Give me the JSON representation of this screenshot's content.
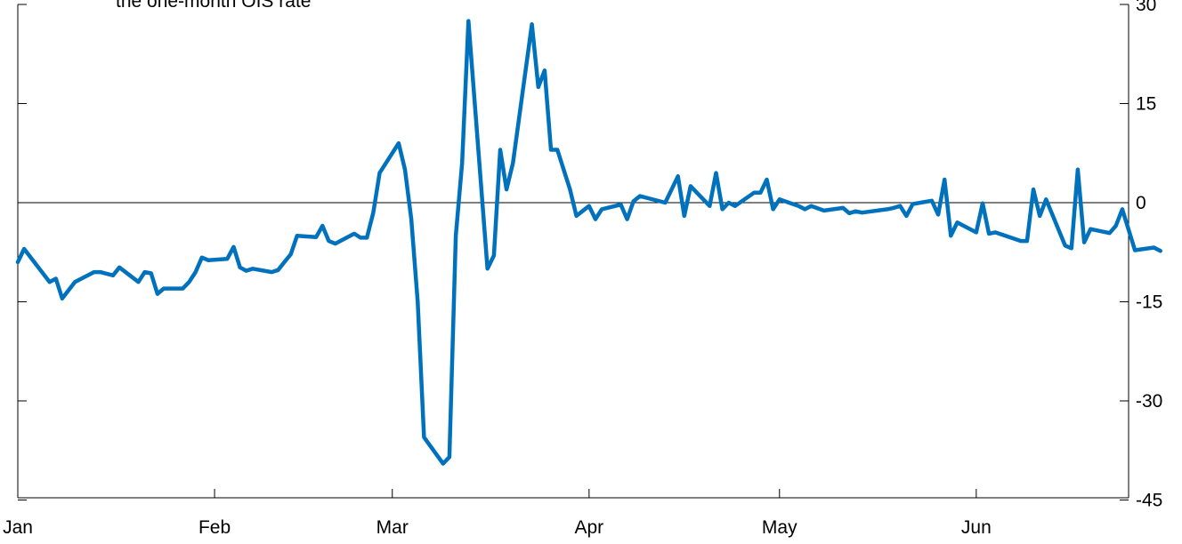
{
  "chart_data": {
    "type": "line",
    "subtitle_fragment": "the one-month OIS rate",
    "x_tick_labels": [
      "Jan",
      "Feb",
      "Mar",
      "Apr",
      "May",
      "Jun"
    ],
    "y_ticks": [
      30,
      15,
      0,
      -15,
      -30,
      -45
    ],
    "ylim": [
      -45,
      30
    ],
    "xlim": [
      0,
      175
    ],
    "zero_line": true,
    "grid": false,
    "series": [
      {
        "color": "#0072BD",
        "points": [
          [
            0,
            -9
          ],
          [
            1,
            -7
          ],
          [
            5,
            -12
          ],
          [
            6,
            -11.5
          ],
          [
            7,
            -14.5
          ],
          [
            9,
            -12
          ],
          [
            12,
            -10.5
          ],
          [
            13,
            -10.5
          ],
          [
            15,
            -11
          ],
          [
            16,
            -9.8
          ],
          [
            19,
            -12
          ],
          [
            20,
            -10.5
          ],
          [
            21,
            -10.7
          ],
          [
            22,
            -13.8
          ],
          [
            23,
            -13
          ],
          [
            26,
            -13
          ],
          [
            27,
            -12
          ],
          [
            28,
            -10.5
          ],
          [
            29,
            -8.3
          ],
          [
            30,
            -8.7
          ],
          [
            33,
            -8.5
          ],
          [
            34,
            -6.7
          ],
          [
            35,
            -9.8
          ],
          [
            36,
            -10.3
          ],
          [
            37,
            -10
          ],
          [
            40,
            -10.5
          ],
          [
            41,
            -10.2
          ],
          [
            42,
            -9
          ],
          [
            43,
            -7.8
          ],
          [
            44,
            -5
          ],
          [
            47,
            -5.2
          ],
          [
            48,
            -3.5
          ],
          [
            49,
            -5.8
          ],
          [
            50,
            -6.2
          ],
          [
            53,
            -4.7
          ],
          [
            54,
            -5.3
          ],
          [
            55,
            -5.3
          ],
          [
            56,
            -1.5
          ],
          [
            57,
            4.5
          ],
          [
            60,
            9
          ],
          [
            61,
            5
          ],
          [
            62,
            -2.5
          ],
          [
            63,
            -15
          ],
          [
            64,
            -35.5
          ],
          [
            67,
            -39.5
          ],
          [
            68,
            -38.5
          ],
          [
            69,
            -5
          ],
          [
            70,
            6
          ],
          [
            71,
            27.5
          ],
          [
            74,
            -10
          ],
          [
            75,
            -8
          ],
          [
            76,
            8
          ],
          [
            77,
            2
          ],
          [
            78,
            6
          ],
          [
            81,
            27
          ],
          [
            82,
            17.5
          ],
          [
            83,
            20
          ],
          [
            84,
            8
          ],
          [
            85,
            8
          ],
          [
            87,
            2
          ],
          [
            88,
            -2
          ],
          [
            90,
            -0.5
          ],
          [
            91,
            -2.5
          ],
          [
            92,
            -1
          ],
          [
            95,
            -0.3
          ],
          [
            96,
            -2.5
          ],
          [
            97,
            0.2
          ],
          [
            98,
            1
          ],
          [
            102,
            0
          ],
          [
            104,
            4
          ],
          [
            105,
            -2
          ],
          [
            106,
            2.5
          ],
          [
            109,
            -0.5
          ],
          [
            110,
            4.5
          ],
          [
            111,
            -1
          ],
          [
            112,
            0
          ],
          [
            113,
            -0.5
          ],
          [
            116,
            1.5
          ],
          [
            117,
            1.5
          ],
          [
            118,
            3.5
          ],
          [
            119,
            -1
          ],
          [
            120,
            0.5
          ],
          [
            123,
            -0.5
          ],
          [
            124,
            -1
          ],
          [
            125,
            -0.5
          ],
          [
            127,
            -1.2
          ],
          [
            130,
            -0.8
          ],
          [
            131,
            -1.6
          ],
          [
            132,
            -1.3
          ],
          [
            133,
            -1.5
          ],
          [
            137,
            -1
          ],
          [
            138,
            -0.8
          ],
          [
            139,
            -0.5
          ],
          [
            140,
            -2
          ],
          [
            141,
            -0.2
          ],
          [
            144,
            0.3
          ],
          [
            145,
            -1.8
          ],
          [
            146,
            3.5
          ],
          [
            147,
            -5
          ],
          [
            148,
            -3
          ],
          [
            151,
            -4.5
          ],
          [
            152,
            -0.1
          ],
          [
            153,
            -4.7
          ],
          [
            154,
            -4.5
          ],
          [
            158,
            -5.8
          ],
          [
            159,
            -5.8
          ],
          [
            160,
            2
          ],
          [
            161,
            -2
          ],
          [
            162,
            0.5
          ],
          [
            165,
            -6.5
          ],
          [
            166,
            -6.9
          ],
          [
            167,
            5
          ],
          [
            168,
            -6
          ],
          [
            169,
            -4
          ],
          [
            172,
            -4.6
          ],
          [
            173,
            -3.5
          ],
          [
            174,
            -1
          ],
          [
            176,
            -7.2
          ],
          [
            179,
            -6.8
          ],
          [
            180,
            -7.3
          ]
        ]
      }
    ]
  }
}
